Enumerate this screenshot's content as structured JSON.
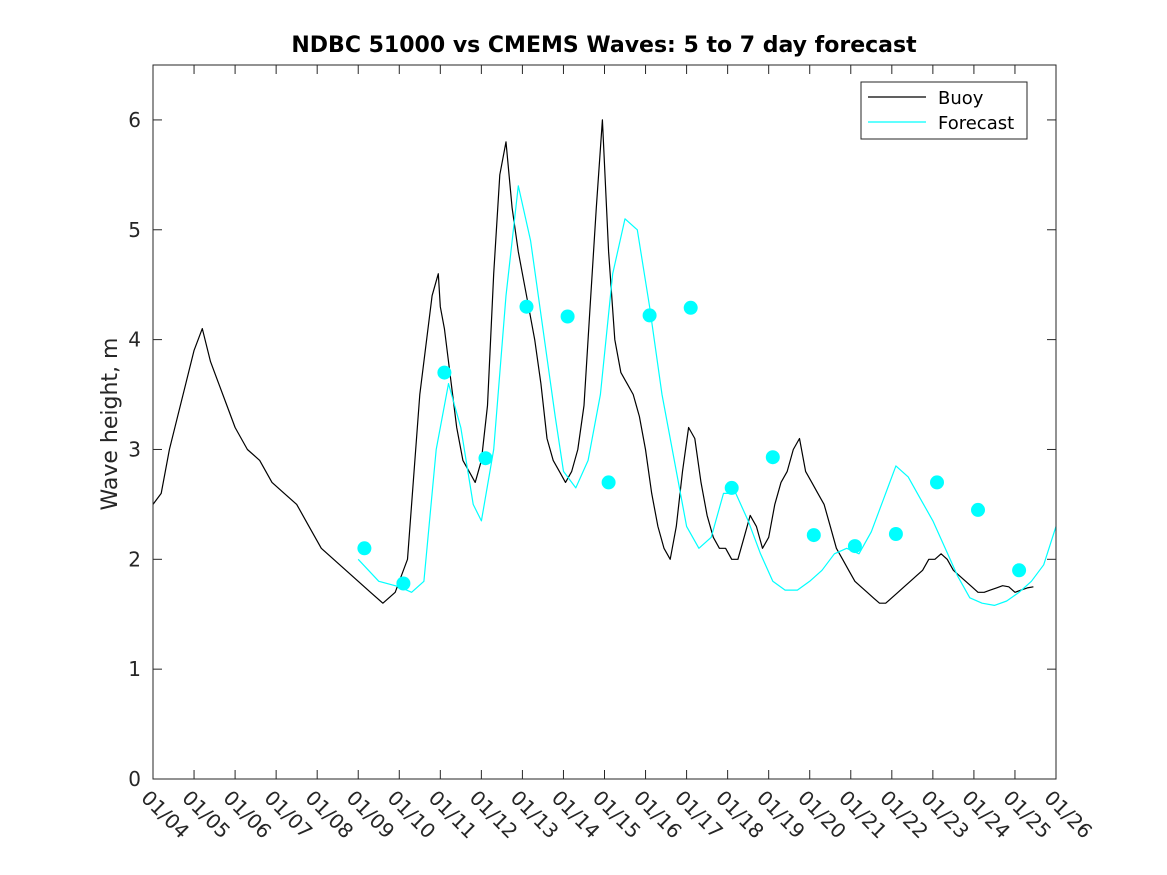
{
  "chart_data": {
    "type": "line",
    "title": "NDBC 51000 vs CMEMS Waves: 5 to 7 day forecast",
    "xlabel": "",
    "ylabel": "Wave height, m",
    "xlim": [
      0,
      22
    ],
    "ylim": [
      0,
      6.5
    ],
    "x_tick_labels": [
      "01/04",
      "01/05",
      "01/06",
      "01/07",
      "01/08",
      "01/09",
      "01/10",
      "01/11",
      "01/12",
      "01/13",
      "01/14",
      "01/15",
      "01/16",
      "01/17",
      "01/18",
      "01/19",
      "01/20",
      "01/21",
      "01/22",
      "01/23",
      "01/24",
      "01/25",
      "01/26"
    ],
    "y_ticks": [
      0,
      1,
      2,
      3,
      4,
      5,
      6
    ],
    "grid": false,
    "legend": {
      "placement": "top-right",
      "entries": [
        "Buoy",
        "Forecast"
      ]
    },
    "colors": {
      "buoy": "#000000",
      "forecast": "#00ffff",
      "axis": "#262626"
    },
    "series": [
      {
        "name": "Buoy",
        "x": [
          0,
          0.2,
          0.4,
          0.6,
          0.8,
          1.0,
          1.2,
          1.4,
          1.6,
          1.8,
          2.0,
          2.3,
          2.6,
          2.9,
          3.2,
          3.5,
          3.8,
          4.1,
          4.4,
          4.7,
          5.0,
          5.3,
          5.6,
          5.9,
          6.2,
          6.5,
          6.8,
          6.95,
          7.0,
          7.1,
          7.2,
          7.3,
          7.4,
          7.55,
          7.7,
          7.85,
          8.0,
          8.15,
          8.3,
          8.45,
          8.6,
          8.75,
          8.9,
          9.0,
          9.15,
          9.3,
          9.45,
          9.6,
          9.75,
          9.9,
          10.05,
          10.2,
          10.35,
          10.5,
          10.65,
          10.8,
          10.95,
          11.1,
          11.25,
          11.4,
          11.55,
          11.7,
          11.85,
          12.0,
          12.15,
          12.3,
          12.45,
          12.6,
          12.75,
          12.9,
          13.05,
          13.2,
          13.35,
          13.5,
          13.65,
          13.8,
          13.95,
          14.1,
          14.25,
          14.4,
          14.55,
          14.7,
          14.85,
          15.0,
          15.15,
          15.3,
          15.45,
          15.6,
          15.75,
          15.9,
          16.05,
          16.2,
          16.35,
          16.5,
          16.65,
          16.8,
          16.95,
          17.1,
          17.25,
          17.4,
          17.55,
          17.7,
          17.85,
          18.0,
          18.15,
          18.3,
          18.45,
          18.6,
          18.75,
          18.9,
          19.05,
          19.2,
          19.35,
          19.5,
          19.65,
          19.8,
          19.95,
          20.1,
          20.25,
          20.4,
          20.55,
          20.7,
          20.85,
          21.0,
          21.15,
          21.3,
          21.45
        ],
        "values": [
          2.5,
          2.6,
          3.0,
          3.3,
          3.6,
          3.9,
          4.1,
          3.8,
          3.6,
          3.4,
          3.2,
          3.0,
          2.9,
          2.7,
          2.6,
          2.5,
          2.3,
          2.1,
          2.0,
          1.9,
          1.8,
          1.7,
          1.6,
          1.7,
          2.0,
          3.5,
          4.4,
          4.6,
          4.3,
          4.1,
          3.8,
          3.5,
          3.2,
          2.9,
          2.8,
          2.7,
          2.9,
          3.4,
          4.6,
          5.5,
          5.8,
          5.2,
          4.8,
          4.6,
          4.3,
          4.0,
          3.6,
          3.1,
          2.9,
          2.8,
          2.7,
          2.8,
          3.0,
          3.4,
          4.3,
          5.2,
          6.0,
          4.8,
          4.0,
          3.7,
          3.6,
          3.5,
          3.3,
          3.0,
          2.6,
          2.3,
          2.1,
          2.0,
          2.3,
          2.8,
          3.2,
          3.1,
          2.7,
          2.4,
          2.2,
          2.1,
          2.1,
          2.0,
          2.0,
          2.2,
          2.4,
          2.3,
          2.1,
          2.2,
          2.5,
          2.7,
          2.8,
          3.0,
          3.1,
          2.8,
          2.7,
          2.6,
          2.5,
          2.3,
          2.1,
          2.0,
          1.9,
          1.8,
          1.75,
          1.7,
          1.65,
          1.6,
          1.6,
          1.65,
          1.7,
          1.75,
          1.8,
          1.85,
          1.9,
          2.0,
          2.0,
          2.05,
          2.0,
          1.9,
          1.85,
          1.8,
          1.75,
          1.7,
          1.7,
          1.72,
          1.74,
          1.76,
          1.75,
          1.7,
          1.72,
          1.74,
          1.75
        ]
      },
      {
        "name": "Forecast",
        "x": [
          5.0,
          5.5,
          6.0,
          6.3,
          6.6,
          6.9,
          7.2,
          7.5,
          7.8,
          8.0,
          8.3,
          8.6,
          8.9,
          9.2,
          9.5,
          9.8,
          10.0,
          10.3,
          10.6,
          10.9,
          11.2,
          11.5,
          11.8,
          12.1,
          12.4,
          12.7,
          13.0,
          13.3,
          13.6,
          13.9,
          14.2,
          14.5,
          14.8,
          15.1,
          15.4,
          15.7,
          16.0,
          16.3,
          16.6,
          16.9,
          17.2,
          17.5,
          17.8,
          18.1,
          18.4,
          18.7,
          19.0,
          19.3,
          19.6,
          19.9,
          20.2,
          20.5,
          20.8,
          21.1,
          21.4,
          21.7,
          22.0
        ],
        "values": [
          2.0,
          1.8,
          1.75,
          1.7,
          1.8,
          3.0,
          3.6,
          3.2,
          2.5,
          2.35,
          3.0,
          4.4,
          5.4,
          4.9,
          4.1,
          3.3,
          2.8,
          2.65,
          2.9,
          3.5,
          4.6,
          5.1,
          5.0,
          4.3,
          3.5,
          2.9,
          2.3,
          2.1,
          2.2,
          2.6,
          2.6,
          2.35,
          2.05,
          1.8,
          1.72,
          1.72,
          1.8,
          1.9,
          2.05,
          2.1,
          2.05,
          2.25,
          2.55,
          2.85,
          2.75,
          2.55,
          2.35,
          2.1,
          1.85,
          1.65,
          1.6,
          1.58,
          1.62,
          1.7,
          1.8,
          1.95,
          2.3
        ]
      }
    ],
    "markers": {
      "series": "Forecast",
      "x": [
        5.15,
        6.1,
        7.1,
        8.1,
        9.1,
        10.1,
        11.1,
        12.1,
        13.1,
        14.1,
        15.1,
        16.1,
        17.1,
        18.1,
        19.1,
        20.1,
        21.1
      ],
      "values": [
        2.1,
        1.78,
        3.7,
        2.92,
        4.3,
        4.21,
        2.7,
        4.22,
        4.29,
        2.65,
        2.93,
        2.22,
        2.12,
        2.23,
        2.7,
        2.45,
        1.9
      ]
    }
  }
}
